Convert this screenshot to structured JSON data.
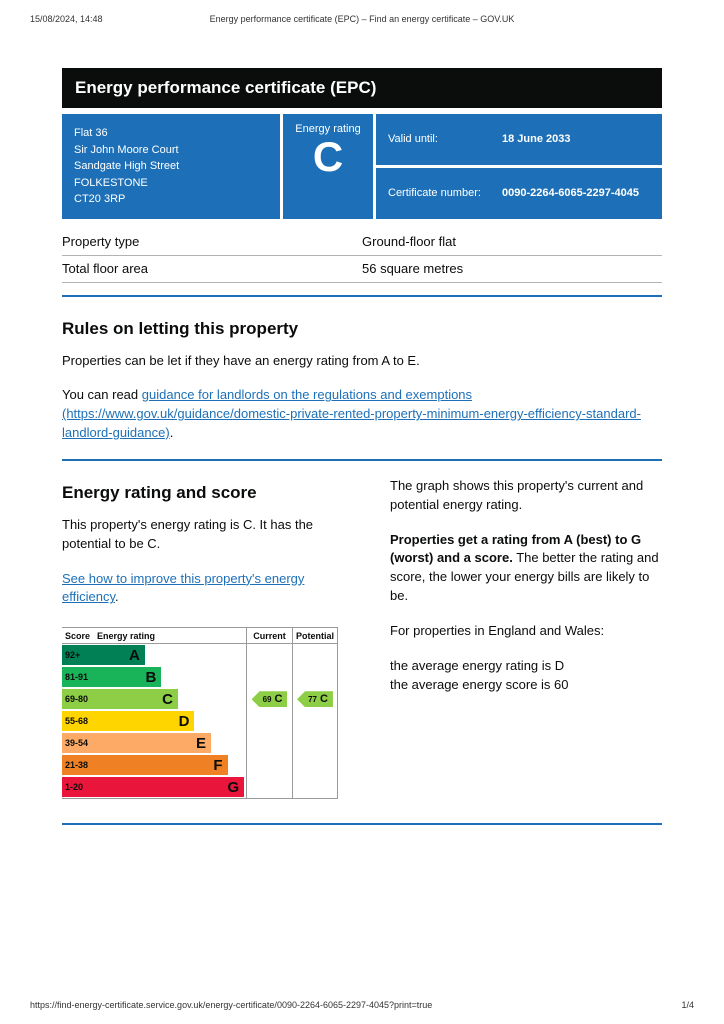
{
  "print_header": {
    "timestamp": "15/08/2024, 14:48",
    "document_title": "Energy performance certificate (EPC) – Find an energy certificate – GOV.UK"
  },
  "banner": {
    "title": "Energy performance certificate (EPC)"
  },
  "summary": {
    "address_lines": [
      "Flat 36",
      "Sir John Moore Court",
      "Sandgate High Street",
      "FOLKESTONE",
      "CT20 3RP"
    ],
    "rating_label": "Energy rating",
    "rating": "C",
    "valid_until_label": "Valid until:",
    "valid_until_value": "18 June 2033",
    "certificate_number_label": "Certificate number:",
    "certificate_number_value": "0090-2264-6065-2297-4045"
  },
  "property_details": [
    {
      "label": "Property type",
      "value": "Ground-floor flat"
    },
    {
      "label": "Total floor area",
      "value": "56 square metres"
    }
  ],
  "letting_rules": {
    "heading": "Rules on letting this property",
    "intro": "Properties can be let if they have an energy rating from A to E.",
    "guidance_prefix": "You can read ",
    "guidance_link_text": "guidance for landlords on the regulations and exemptions (https://www.gov.uk/guidance/domestic-private-rented-property-minimum-energy-efficiency-standard-landlord-guidance)",
    "guidance_suffix": "."
  },
  "rating_section": {
    "heading": "Energy rating and score",
    "summary_text": "This property's energy rating is C. It has the potential to be C.",
    "improve_link_text": "See how to improve this property's energy efficiency",
    "improve_link_suffix": ".",
    "graph_intro": "The graph shows this property's current and potential energy rating.",
    "explanation_bold": "Properties get a rating from A (best) to G (worst) and a score.",
    "explanation_rest": " The better the rating and score, the lower your energy bills are likely to be.",
    "england_wales_intro": "For properties in England and Wales:",
    "average_rating_line": "the average energy rating is D",
    "average_score_line": "the average energy score is 60"
  },
  "chart_data": {
    "type": "epc-rating-bars",
    "column_headers": {
      "score": "Score",
      "rating": "Energy rating",
      "current": "Current",
      "potential": "Potential"
    },
    "bands": [
      {
        "score_range": "92+",
        "letter": "A",
        "color": "#008054"
      },
      {
        "score_range": "81-91",
        "letter": "B",
        "color": "#19b459"
      },
      {
        "score_range": "69-80",
        "letter": "C",
        "color": "#8dce46"
      },
      {
        "score_range": "55-68",
        "letter": "D",
        "color": "#ffd500"
      },
      {
        "score_range": "39-54",
        "letter": "E",
        "color": "#fcaa65"
      },
      {
        "score_range": "21-38",
        "letter": "F",
        "color": "#ef8023"
      },
      {
        "score_range": "1-20",
        "letter": "G",
        "color": "#e9153b"
      }
    ],
    "current": {
      "score": 69,
      "letter": "C",
      "band_letter": "C"
    },
    "potential": {
      "score": 77,
      "letter": "C",
      "band_letter": "C"
    }
  },
  "footer": {
    "url": "https://find-energy-certificate.service.gov.uk/energy-certificate/0090-2264-6065-2297-4045?print=true",
    "page_indicator": "1/4"
  },
  "colors": {
    "govuk_blue": "#1d70b8",
    "banner_black": "#0b0c0c",
    "link_blue": "#1d70b8",
    "rule_blue": "#1d70b8"
  }
}
